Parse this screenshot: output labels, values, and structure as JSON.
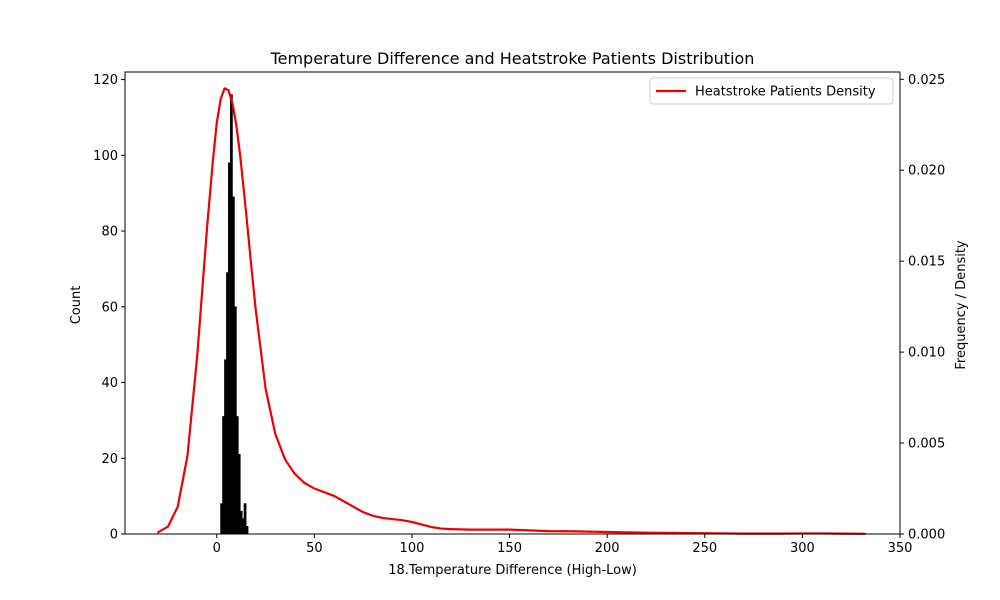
{
  "chart_data": {
    "type": "bar",
    "title": "Temperature Difference and Heatstroke Patients Distribution",
    "xlabel": "18.Temperature Difference (High-Low)",
    "ylabel_left": "Count",
    "ylabel_right": "Frequency / Density",
    "xlim": [
      -47,
      350
    ],
    "ylim_left": [
      0,
      122
    ],
    "ylim_right": [
      0,
      0.0254
    ],
    "xticks": [
      "0",
      "50",
      "100",
      "150",
      "200",
      "250",
      "300",
      "350"
    ],
    "yticks_left": [
      "0",
      "20",
      "40",
      "60",
      "80",
      "100",
      "120"
    ],
    "yticks_right": [
      "0.000",
      "0.005",
      "0.010",
      "0.015",
      "0.020",
      "0.025"
    ],
    "grid": false,
    "legend": {
      "position": "top-right",
      "entries": [
        "Heatstroke Patients Density"
      ]
    },
    "colors": {
      "histogram": "#000000",
      "density": "#ee0000"
    },
    "series": [
      {
        "kind": "histogram",
        "axis": "left",
        "bin_edges": [
          2,
          3,
          4,
          5,
          6,
          7,
          8,
          9,
          10,
          11,
          12,
          13,
          14,
          15,
          16
        ],
        "counts": [
          8,
          31,
          46,
          69,
          98,
          116,
          89,
          60,
          31,
          21,
          6,
          4,
          8,
          2
        ]
      },
      {
        "kind": "line",
        "name": "Heatstroke Patients Density",
        "axis": "right",
        "x": [
          -30,
          -25,
          -20,
          -15,
          -10,
          -5,
          -2,
          0,
          2,
          4,
          6,
          8,
          10,
          12,
          15,
          18,
          20,
          25,
          30,
          35,
          40,
          45,
          50,
          55,
          60,
          65,
          70,
          75,
          80,
          85,
          90,
          95,
          100,
          105,
          110,
          115,
          120,
          130,
          140,
          150,
          160,
          170,
          180,
          190,
          200,
          210,
          220,
          230,
          240,
          250,
          260,
          270,
          280,
          290,
          300,
          310,
          320,
          332
        ],
        "y": [
          0.0001,
          0.0004,
          0.0015,
          0.0043,
          0.0098,
          0.0168,
          0.0205,
          0.0226,
          0.0239,
          0.0245,
          0.0244,
          0.0237,
          0.0225,
          0.0208,
          0.0177,
          0.0144,
          0.0123,
          0.008,
          0.0055,
          0.0041,
          0.0033,
          0.0028,
          0.0025,
          0.0023,
          0.0021,
          0.0018,
          0.0015,
          0.0012,
          0.001,
          0.00088,
          0.00082,
          0.00076,
          0.00066,
          0.00052,
          0.00038,
          0.0003,
          0.00027,
          0.00024,
          0.00024,
          0.00024,
          0.0002,
          0.00016,
          0.00015,
          0.00013,
          0.00011,
          9e-05,
          7e-05,
          6e-05,
          5e-05,
          4e-05,
          3e-05,
          2e-05,
          2e-05,
          2e-05,
          3e-05,
          3e-05,
          2e-05,
          1e-05
        ]
      }
    ]
  }
}
